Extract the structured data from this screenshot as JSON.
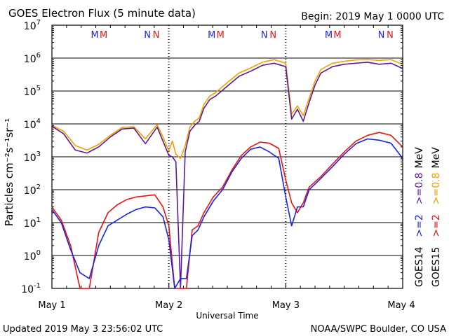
{
  "header": {
    "title": "GOES Electron Flux (5 minute data)",
    "begin": "Begin: 2019 May 1 0000 UTC"
  },
  "footer": {
    "updated": "Updated 2019 May  3 23:56:02 UTC",
    "source": "NOAA/SWPC Boulder, CO USA"
  },
  "colors": {
    "goes14_ge2": "#1a22e6",
    "goes15_ge2": "#ee1111",
    "goes14_ge08": "#5a1a9a",
    "goes15_ge08": "#f2a000",
    "m_goes14": "#1a22e6",
    "m_goes15": "#ee1111"
  },
  "chart_data": {
    "type": "line",
    "title": "GOES Electron Flux (5 minute data)",
    "xlabel": "Universal Time",
    "ylabel": "Particles cm⁻²s⁻¹sr⁻¹",
    "yscale": "log",
    "ylim": [
      0.1,
      10000000
    ],
    "xlim": [
      0,
      3
    ],
    "y_ticks": [
      {
        "base": "10",
        "exp": "-1"
      },
      {
        "base": "10",
        "exp": "0"
      },
      {
        "base": "10",
        "exp": "1"
      },
      {
        "base": "10",
        "exp": "2"
      },
      {
        "base": "10",
        "exp": "3"
      },
      {
        "base": "10",
        "exp": "4"
      },
      {
        "base": "10",
        "exp": "5"
      },
      {
        "base": "10",
        "exp": "6"
      },
      {
        "base": "10",
        "exp": "7"
      }
    ],
    "x_ticks": [
      "May 1",
      "May 2",
      "May 3",
      "May 4"
    ],
    "alert_threshold": 1000,
    "grid": true,
    "legend_right": {
      "satellites": [
        {
          "text": "GOES15",
          "color": "#000000"
        },
        {
          "text": "GOES14",
          "color": "#000000"
        }
      ],
      "ge2": [
        {
          "text": ">=2",
          "color": "#ee1111"
        },
        {
          "text": ">=2",
          "color": "#1a22e6"
        }
      ],
      "ge08": [
        {
          "text": ">=0.8",
          "color": "#f2a000"
        },
        {
          "text": ">=0.8",
          "color": "#5a1a9a"
        }
      ],
      "unit": "MeV"
    },
    "mn_markers": [
      {
        "day": 0,
        "items": [
          {
            "text": "M",
            "color": "#1a22e6"
          },
          {
            "text": "M",
            "color": "#ee1111"
          },
          {
            "text": "N",
            "color": "#1a22e6"
          },
          {
            "text": "N",
            "color": "#ee1111"
          }
        ]
      },
      {
        "day": 1,
        "items": [
          {
            "text": "M",
            "color": "#1a22e6"
          },
          {
            "text": "M",
            "color": "#ee1111"
          },
          {
            "text": "N",
            "color": "#1a22e6"
          },
          {
            "text": "N",
            "color": "#ee1111"
          }
        ]
      },
      {
        "day": 2,
        "items": [
          {
            "text": "M",
            "color": "#1a22e6"
          },
          {
            "text": "M",
            "color": "#ee1111"
          },
          {
            "text": "N",
            "color": "#1a22e6"
          },
          {
            "text": "N",
            "color": "#ee1111"
          }
        ]
      }
    ],
    "series": [
      {
        "name": "GOES15 >=0.8 MeV",
        "color": "#f2a000",
        "x": [
          0,
          0.1,
          0.2,
          0.3,
          0.4,
          0.5,
          0.6,
          0.7,
          0.8,
          0.9,
          0.95,
          1.0,
          1.03,
          1.06,
          1.1,
          1.14,
          1.18,
          1.22,
          1.26,
          1.3,
          1.35,
          1.4,
          1.5,
          1.6,
          1.7,
          1.8,
          1.9,
          2.0,
          2.05,
          2.1,
          2.15,
          2.2,
          2.25,
          2.3,
          2.4,
          2.5,
          2.6,
          2.7,
          2.8,
          2.9,
          3.0
        ],
        "y": [
          9000,
          6000,
          2200,
          1600,
          2400,
          4500,
          7800,
          8200,
          3500,
          9500,
          4000,
          1500,
          3000,
          1200,
          900,
          2200,
          8000,
          12000,
          15000,
          40000,
          70000,
          90000,
          180000,
          350000,
          500000,
          750000,
          900000,
          700000,
          20000,
          35000,
          18000,
          60000,
          200000,
          450000,
          700000,
          800000,
          880000,
          900000,
          850000,
          900000,
          650000
        ]
      },
      {
        "name": "GOES14 >=0.8 MeV",
        "color": "#5a1a9a",
        "x": [
          0,
          0.1,
          0.2,
          0.3,
          0.4,
          0.5,
          0.6,
          0.7,
          0.8,
          0.9,
          0.95,
          1.0,
          1.03,
          1.06,
          1.1,
          1.14,
          1.18,
          1.22,
          1.26,
          1.3,
          1.35,
          1.4,
          1.5,
          1.6,
          1.7,
          1.8,
          1.9,
          2.0,
          2.05,
          2.1,
          2.15,
          2.2,
          2.25,
          2.3,
          2.4,
          2.5,
          2.6,
          2.7,
          2.8,
          2.9,
          3.0
        ],
        "y": [
          8500,
          5000,
          1600,
          1300,
          2000,
          4000,
          7000,
          7500,
          2500,
          8000,
          3000,
          1100,
          1000,
          700,
          0.1,
          1400,
          6000,
          9000,
          12000,
          30000,
          55000,
          70000,
          140000,
          280000,
          400000,
          600000,
          700000,
          550000,
          14000,
          28000,
          12000,
          45000,
          150000,
          350000,
          550000,
          650000,
          700000,
          750000,
          650000,
          700000,
          480000
        ]
      },
      {
        "name": "GOES15 >=2 MeV",
        "color": "#ee1111",
        "x": [
          0,
          0.08,
          0.16,
          0.24,
          0.32,
          0.4,
          0.48,
          0.56,
          0.64,
          0.72,
          0.8,
          0.88,
          0.95,
          1.0,
          1.05,
          1.1,
          1.15,
          1.2,
          1.25,
          1.3,
          1.38,
          1.46,
          1.54,
          1.62,
          1.7,
          1.78,
          1.86,
          1.94,
          2.0,
          2.05,
          2.1,
          2.15,
          2.2,
          2.3,
          2.4,
          2.5,
          2.6,
          2.7,
          2.8,
          2.9,
          3.0
        ],
        "y": [
          30,
          12,
          2,
          0.1,
          0.1,
          5,
          20,
          35,
          50,
          60,
          65,
          70,
          30,
          8,
          0.1,
          0.1,
          0.1,
          6,
          8,
          20,
          60,
          120,
          400,
          1100,
          2000,
          2800,
          2600,
          1800,
          200,
          40,
          20,
          40,
          120,
          250,
          600,
          1400,
          3000,
          4500,
          5500,
          4500,
          2000
        ]
      },
      {
        "name": "GOES14 >=2 MeV",
        "color": "#1a22e6",
        "x": [
          0,
          0.08,
          0.16,
          0.24,
          0.32,
          0.4,
          0.48,
          0.56,
          0.64,
          0.72,
          0.8,
          0.88,
          0.95,
          1.0,
          1.05,
          1.1,
          1.15,
          1.2,
          1.25,
          1.3,
          1.38,
          1.46,
          1.54,
          1.62,
          1.7,
          1.78,
          1.86,
          1.94,
          2.0,
          2.05,
          2.1,
          2.15,
          2.2,
          2.3,
          2.4,
          2.5,
          2.6,
          2.7,
          2.8,
          2.9,
          3.0
        ],
        "y": [
          25,
          10,
          1.5,
          0.3,
          0.2,
          2,
          8,
          12,
          18,
          25,
          30,
          28,
          15,
          3,
          0.1,
          0.2,
          0.2,
          4,
          6,
          15,
          45,
          100,
          350,
          900,
          1700,
          2000,
          1400,
          900,
          60,
          8,
          30,
          30,
          100,
          220,
          500,
          1200,
          2500,
          3500,
          3200,
          2600,
          900
        ]
      }
    ]
  }
}
